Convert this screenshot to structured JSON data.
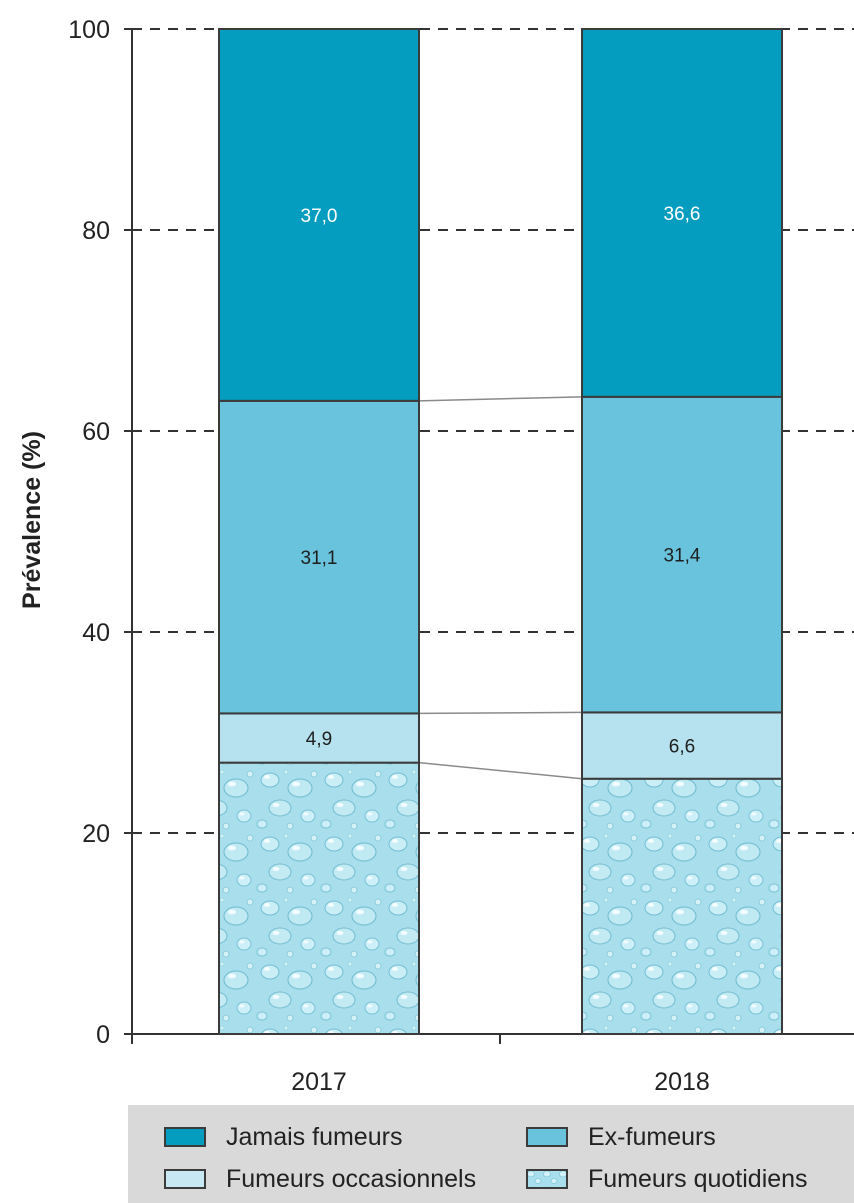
{
  "chart_data": {
    "type": "bar",
    "stacked": true,
    "categories": [
      "2017",
      "2018"
    ],
    "ylabel": "Prévalence (%)",
    "xlabel": "",
    "title": "",
    "ylim": [
      0,
      100
    ],
    "yticks": [
      0,
      20,
      40,
      60,
      80,
      100
    ],
    "grid": "horizontal dashed",
    "legend_position": "bottom",
    "series": [
      {
        "name": "Fumeurs quotidiens",
        "values": [
          27.0,
          25.4
        ],
        "color": "#a9dfec",
        "pattern": "water-drops",
        "labels": [
          "",
          ""
        ]
      },
      {
        "name": "Fumeurs occasionnels",
        "values": [
          4.9,
          6.6
        ],
        "color": "#b6e1ee",
        "labels": [
          "4,9",
          "6,6"
        ]
      },
      {
        "name": "Ex-fumeurs",
        "values": [
          31.1,
          31.4
        ],
        "color": "#69c3dd",
        "labels": [
          "31,1",
          "31,4"
        ]
      },
      {
        "name": "Jamais fumeurs",
        "values": [
          37.0,
          36.6
        ],
        "color": "#059dbf",
        "labels": [
          "37,0",
          "36,6"
        ]
      }
    ]
  },
  "legend": {
    "items": [
      {
        "label": "Jamais fumeurs",
        "color": "#059dbf"
      },
      {
        "label": "Ex-fumeurs",
        "color": "#69c3dd"
      },
      {
        "label": "Fumeurs occasionnels",
        "color": "#c8e9f3"
      },
      {
        "label": "Fumeurs quotidiens",
        "color": "#a9dfec",
        "pattern": "water-drops"
      }
    ]
  }
}
